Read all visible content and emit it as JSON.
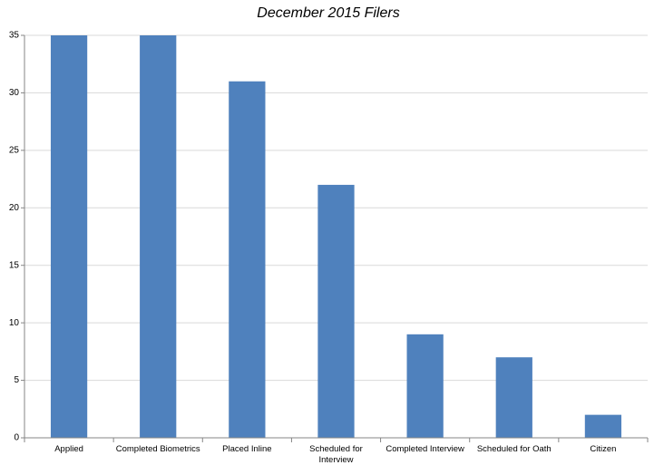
{
  "chart_data": {
    "type": "bar",
    "title": "December 2015 Filers",
    "categories": [
      "Applied",
      "Completed Biometrics",
      "Placed Inline",
      "Scheduled for Interview",
      "Completed Interview",
      "Scheduled for Oath",
      "Citizen"
    ],
    "values": [
      35,
      35,
      31,
      22,
      9,
      7,
      2
    ],
    "color": "#4f81bd",
    "ylim": [
      0,
      35
    ],
    "yticks": [
      0,
      5,
      10,
      15,
      20,
      25,
      30,
      35
    ],
    "grid": true
  }
}
